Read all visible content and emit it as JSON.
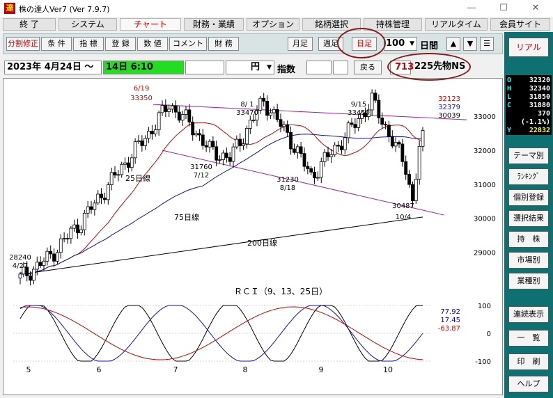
{
  "window": {
    "title": "株の達人Ver7 (Ver 7.9.7)",
    "app_icon": "達",
    "minimize": "—",
    "maximize": "☐",
    "close": "✕"
  },
  "menu": [
    "終 了",
    "システム",
    "チャート",
    "財務・業績",
    "オプション",
    "銘柄選択",
    "持株管理",
    "リアルタイム",
    "会員サイト"
  ],
  "toolbar": {
    "buttons": [
      "分割修正",
      "条 件",
      "指 標",
      "登 録",
      "数 値",
      "コメント",
      "財 務"
    ],
    "period": [
      "月足",
      "週足",
      "日足"
    ],
    "count": "100",
    "unit": "日間",
    "arrows": [
      "▲",
      "▼",
      "☰"
    ]
  },
  "info": {
    "date": "2023年 4月24日 〜",
    "date_green": "14日  6:10",
    "unit": "円",
    "index_label": "指数",
    "back": "戻る",
    "code": "713",
    "name": "225先物NS"
  },
  "side": {
    "top_button": "リアル",
    "quotes": [
      {
        "k": "O",
        "v": "32320",
        "color": "#ffffff"
      },
      {
        "k": "H",
        "v": "32340",
        "color": "#ffffff"
      },
      {
        "k": "L",
        "v": "31850",
        "color": "#ffffff"
      },
      {
        "k": "C",
        "v": "31880",
        "color": "#ffffff"
      },
      {
        "k": "",
        "v": "370",
        "color": "#ffffff"
      },
      {
        "k": "",
        "v": "(-1.1%)",
        "color": "#ffffff"
      },
      {
        "k": "Y",
        "v": "22832",
        "color": "#ffff00"
      }
    ],
    "buttons": [
      "テーマ別",
      "ﾗﾝｷﾝｸﾞ",
      "個別登録",
      "選択結果",
      "持　株",
      "市場別",
      "業種別",
      "連続表示",
      "一　覧",
      "印　刷",
      "ヘルプ"
    ]
  },
  "chart_data": [
    {
      "type": "candlestick",
      "title": "",
      "months": [
        "5",
        "6",
        "7",
        "8",
        "9",
        "10"
      ],
      "price_axis": [
        "33000",
        "32000",
        "31000",
        "30000",
        "29000"
      ],
      "ylim": [
        28500,
        33700
      ],
      "ma_labels": [
        "25日線",
        "75日線",
        "200日線"
      ],
      "ma_colors": [
        "#d00000",
        "#1010c0",
        "#000000"
      ],
      "annotations": [
        {
          "text": "6/19",
          "color": "#d00000"
        },
        {
          "text": "33350",
          "color": "#d00000"
        },
        {
          "text": "8/ 1",
          "color": "#000000"
        },
        {
          "text": "33470",
          "color": "#000000"
        },
        {
          "text": "9/15",
          "color": "#000000"
        },
        {
          "text": "33450",
          "color": "#000000"
        },
        {
          "text": "31760",
          "color": "#000000"
        },
        {
          "text": "7/12",
          "color": "#000000"
        },
        {
          "text": "31230",
          "color": "#000000"
        },
        {
          "text": "8/18",
          "color": "#000000"
        },
        {
          "text": "30487",
          "color": "#000000"
        },
        {
          "text": "10/4",
          "color": "#000000"
        },
        {
          "text": "28240",
          "color": "#000000"
        },
        {
          "text": "4/27",
          "color": "#000000"
        }
      ],
      "ma_values": [
        {
          "text": "32123",
          "color": "#d00000"
        },
        {
          "text": "32379",
          "color": "#1010c0"
        },
        {
          "text": "30039",
          "color": "#000000"
        }
      ]
    },
    {
      "type": "line",
      "title": "ＲＣＩ（9、13、25日）",
      "y_ticks": [
        "100",
        "0",
        "-100"
      ],
      "ylim": [
        -100,
        100
      ],
      "last_values": [
        {
          "text": "77.92",
          "color": "#0000c0"
        },
        {
          "text": "17.45",
          "color": "#0000c0"
        },
        {
          "text": "-63.87",
          "color": "#d00000"
        }
      ]
    }
  ]
}
